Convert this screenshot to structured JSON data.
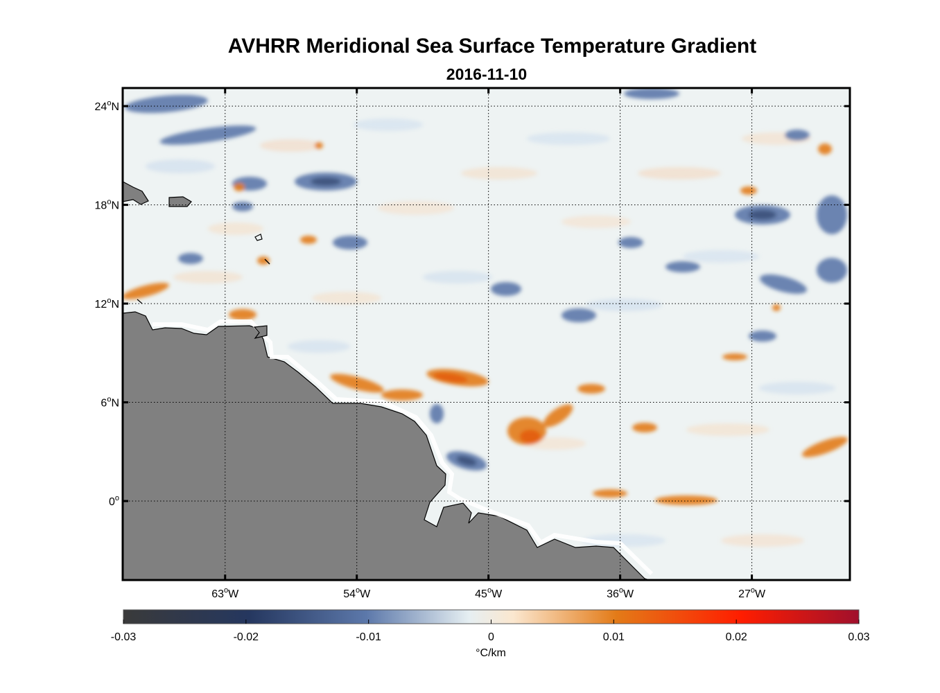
{
  "title": "AVHRR Meridional Sea Surface Temperature Gradient",
  "subtitle": "2016-11-10",
  "map": {
    "lon_range": [
      -70,
      -20.3
    ],
    "lat_range": [
      -4.8,
      25.1
    ],
    "grid": true,
    "land_color": "#808080",
    "lat_ticks": [
      {
        "value": 24,
        "deg": "24",
        "hemi": "N"
      },
      {
        "value": 18,
        "deg": "18",
        "hemi": "N"
      },
      {
        "value": 12,
        "deg": "12",
        "hemi": "N"
      },
      {
        "value": 6,
        "deg": "6",
        "hemi": "N"
      },
      {
        "value": 0,
        "deg": "0",
        "hemi": ""
      }
    ],
    "lon_ticks": [
      {
        "value": -63,
        "deg": "63",
        "hemi": "W"
      },
      {
        "value": -54,
        "deg": "54",
        "hemi": "W"
      },
      {
        "value": -45,
        "deg": "45",
        "hemi": "W"
      },
      {
        "value": -36,
        "deg": "36",
        "hemi": "W"
      },
      {
        "value": -27,
        "deg": "27",
        "hemi": "W"
      }
    ]
  },
  "colorbar": {
    "label": "°C/km",
    "range": [
      -0.03,
      0.03
    ],
    "ticks": [
      {
        "value": -0.03,
        "label": "-0.03"
      },
      {
        "value": -0.02,
        "label": "-0.02"
      },
      {
        "value": -0.01,
        "label": "-0.01"
      },
      {
        "value": 0,
        "label": "0"
      },
      {
        "value": 0.01,
        "label": "0.01"
      },
      {
        "value": 0.02,
        "label": "0.02"
      },
      {
        "value": 0.03,
        "label": "0.03"
      }
    ],
    "colors": [
      "#3a3a3a",
      "#25375f",
      "#5c78aa",
      "#e6eff2",
      "#fbe7cf",
      "#e37b18",
      "#ff1d00",
      "#a0102c"
    ]
  }
}
